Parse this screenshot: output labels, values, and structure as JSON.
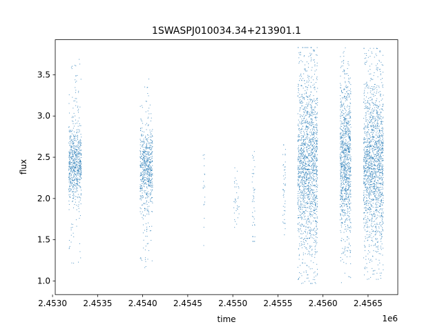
{
  "chart_data": {
    "type": "scatter",
    "title": "1SWASPJ010034.34+213901.1",
    "xlabel": "time",
    "ylabel": "flux",
    "x_offset_label": "1e6",
    "xlim": [
      2.45303,
      2.45683
    ],
    "ylim": [
      0.835,
      3.925
    ],
    "x_ticks": [
      2.453,
      2.4535,
      2.454,
      2.4545,
      2.455,
      2.4555,
      2.456,
      2.4565
    ],
    "x_tick_labels": [
      "2.4530",
      "2.4535",
      "2.4540",
      "2.4545",
      "2.4550",
      "2.4555",
      "2.4560",
      "2.4565"
    ],
    "y_ticks": [
      1.0,
      1.5,
      2.0,
      2.5,
      3.0,
      3.5
    ],
    "y_tick_labels": [
      "1.0",
      "1.5",
      "2.0",
      "2.5",
      "3.0",
      "3.5"
    ],
    "grid": false,
    "legend": "none",
    "marker_color": "#1f77b4",
    "clusters": [
      {
        "x_center": 2.45325,
        "x_width": 0.00014,
        "y_center": 2.42,
        "y_spread": 0.22,
        "y_min": 1.2,
        "y_max": 3.7,
        "n": 700
      },
      {
        "x_center": 2.45404,
        "x_width": 0.00014,
        "y_center": 2.35,
        "y_spread": 0.25,
        "y_min": 1.15,
        "y_max": 3.45,
        "n": 650
      },
      {
        "x_center": 2.45468,
        "x_width": 2e-05,
        "y_center": 2.05,
        "y_spread": 0.3,
        "y_min": 1.43,
        "y_max": 2.6,
        "n": 18
      },
      {
        "x_center": 2.45504,
        "x_width": 6e-05,
        "y_center": 2.0,
        "y_spread": 0.2,
        "y_min": 1.65,
        "y_max": 2.45,
        "n": 35
      },
      {
        "x_center": 2.45523,
        "x_width": 3e-05,
        "y_center": 2.05,
        "y_spread": 0.3,
        "y_min": 1.48,
        "y_max": 2.57,
        "n": 40
      },
      {
        "x_center": 2.45557,
        "x_width": 3e-05,
        "y_center": 2.15,
        "y_spread": 0.3,
        "y_min": 1.43,
        "y_max": 2.65,
        "n": 45
      },
      {
        "x_center": 2.45583,
        "x_width": 0.00022,
        "y_center": 2.42,
        "y_spread": 0.55,
        "y_min": 0.97,
        "y_max": 3.83,
        "n": 1600
      },
      {
        "x_center": 2.45625,
        "x_width": 0.00012,
        "y_center": 2.45,
        "y_spread": 0.45,
        "y_min": 0.98,
        "y_max": 3.83,
        "n": 1000
      },
      {
        "x_center": 2.45656,
        "x_width": 0.00022,
        "y_center": 2.42,
        "y_spread": 0.5,
        "y_min": 1.02,
        "y_max": 3.82,
        "n": 1600
      }
    ]
  }
}
